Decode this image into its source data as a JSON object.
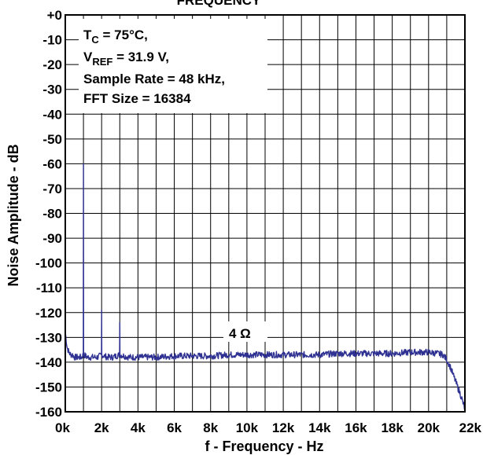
{
  "chart_data": {
    "type": "line",
    "title": "FREQUENCY",
    "xlabel": "f - Frequency - Hz",
    "ylabel": "Noise Amplitude - dB",
    "xlim": [
      0,
      22000
    ],
    "ylim": [
      -160,
      0
    ],
    "grid": true,
    "x_ticks": [
      {
        "value": 0,
        "label": "0k"
      },
      {
        "value": 2000,
        "label": "2k"
      },
      {
        "value": 4000,
        "label": "4k"
      },
      {
        "value": 6000,
        "label": "6k"
      },
      {
        "value": 8000,
        "label": "8k"
      },
      {
        "value": 10000,
        "label": "10k"
      },
      {
        "value": 12000,
        "label": "12k"
      },
      {
        "value": 14000,
        "label": "14k"
      },
      {
        "value": 16000,
        "label": "16k"
      },
      {
        "value": 18000,
        "label": "18k"
      },
      {
        "value": 20000,
        "label": "20k"
      },
      {
        "value": 22000,
        "label": "22k"
      }
    ],
    "y_ticks": [
      {
        "value": 0,
        "label": "+0"
      },
      {
        "value": -10,
        "label": "-10"
      },
      {
        "value": -20,
        "label": "-20"
      },
      {
        "value": -30,
        "label": "-30"
      },
      {
        "value": -40,
        "label": "-40"
      },
      {
        "value": -50,
        "label": "-50"
      },
      {
        "value": -60,
        "label": "-60"
      },
      {
        "value": -70,
        "label": "-70"
      },
      {
        "value": -80,
        "label": "-80"
      },
      {
        "value": -90,
        "label": "-90"
      },
      {
        "value": -100,
        "label": "-100"
      },
      {
        "value": -110,
        "label": "-110"
      },
      {
        "value": -120,
        "label": "-120"
      },
      {
        "value": -130,
        "label": "-130"
      },
      {
        "value": -140,
        "label": "-140"
      },
      {
        "value": -150,
        "label": "-150"
      },
      {
        "value": -160,
        "label": "-160"
      }
    ],
    "annotation": {
      "line1_main": "T",
      "line1_sub": "C",
      "line1_rest": " = 75°C,",
      "line2_main": "V",
      "line2_sub": "REF",
      "line2_rest": " = 31.9 V,",
      "line3": "Sample Rate = 48 kHz,",
      "line4": "FFT Size = 16384"
    },
    "series_label": "4 Ω",
    "series_color": "#2e3192",
    "series": [
      {
        "name": "4 Ω",
        "x": [
          0,
          100,
          200,
          300,
          400,
          500,
          700,
          900,
          990,
          1000,
          1010,
          1200,
          1500,
          1800,
          1990,
          2000,
          2010,
          2300,
          2600,
          2990,
          3000,
          3010,
          3500,
          4000,
          5000,
          6000,
          7000,
          8000,
          9000,
          10000,
          11000,
          12000,
          13000,
          14000,
          15000,
          16000,
          17000,
          18000,
          19000,
          20000,
          20500,
          20800,
          21000,
          21200,
          21400,
          21600,
          21800,
          22000
        ],
        "y": [
          -128,
          -134,
          -136,
          -137,
          -137,
          -138,
          -138,
          -138,
          -137,
          -60,
          -137,
          -138,
          -138,
          -138,
          -137,
          -119,
          -137,
          -138,
          -138,
          -137,
          -124,
          -137,
          -138,
          -138,
          -138,
          -137.5,
          -137.5,
          -137.5,
          -137,
          -137,
          -137,
          -137,
          -137,
          -137,
          -136.5,
          -136.5,
          -136.5,
          -136.5,
          -136,
          -136,
          -136.5,
          -137,
          -139,
          -142,
          -146,
          -150,
          -154,
          -159
        ]
      }
    ]
  }
}
